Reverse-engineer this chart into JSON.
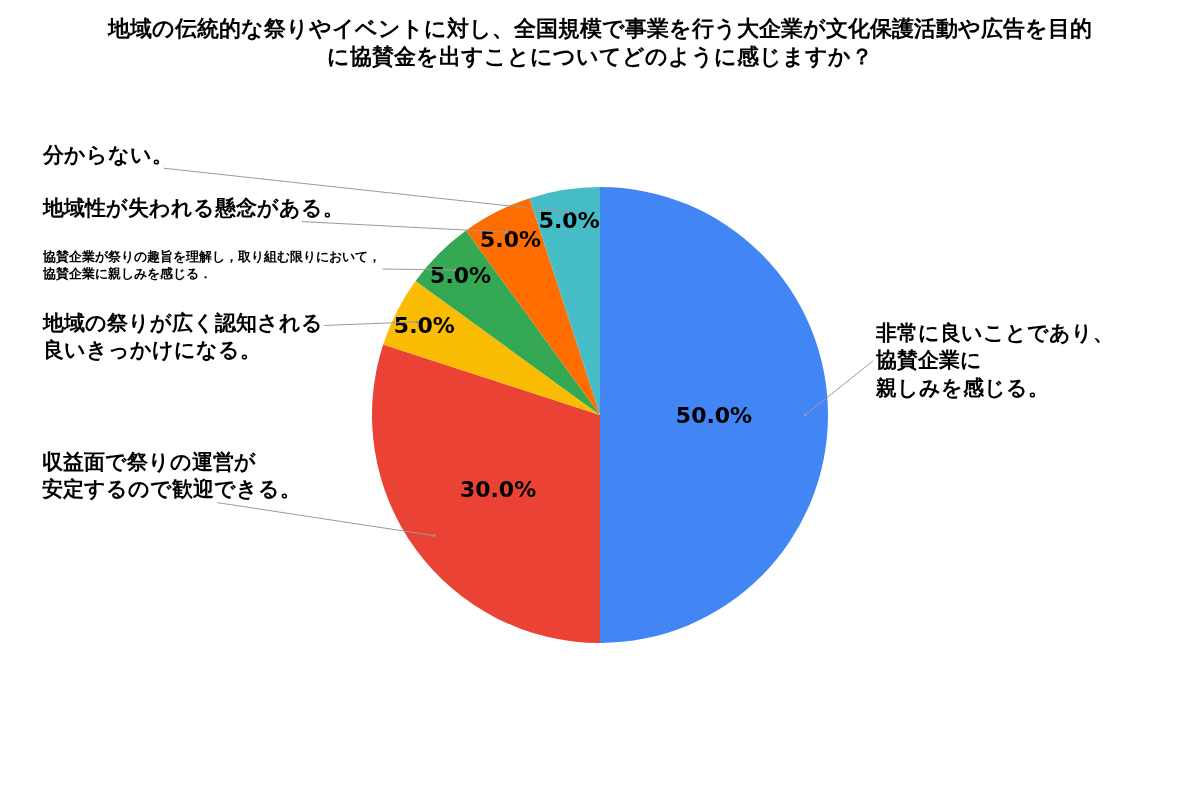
{
  "chart_data": {
    "type": "pie",
    "title": "地域の伝統的な祭りやイベントに対し、全国規模で事業を行う大企業が文化保護活動や広告を目的に協賛金を出すことについてどのように感じますか？",
    "categories": [
      "非常に良いことであり、協賛企業に親しみを感じる。",
      "収益面で祭りの運営が安定するので歓迎できる。",
      "地域の祭りが広く認知される良いきっかけになる。",
      "協賛企業が祭りの趣旨を理解し，取り組む限りにおいて，協賛企業に親しみを感じる．",
      "地域性が失われる懸念がある。",
      "分からない。"
    ],
    "values": [
      50,
      30,
      5,
      5,
      5,
      5
    ],
    "colors": [
      "#4285f4",
      "#ea4335",
      "#fbbc04",
      "#34a853",
      "#ff6d01",
      "#46bdc6"
    ],
    "value_labels": [
      "50.0%",
      "30.0%",
      "5.0%",
      "5.0%",
      "5.0%",
      "5.0%"
    ]
  }
}
